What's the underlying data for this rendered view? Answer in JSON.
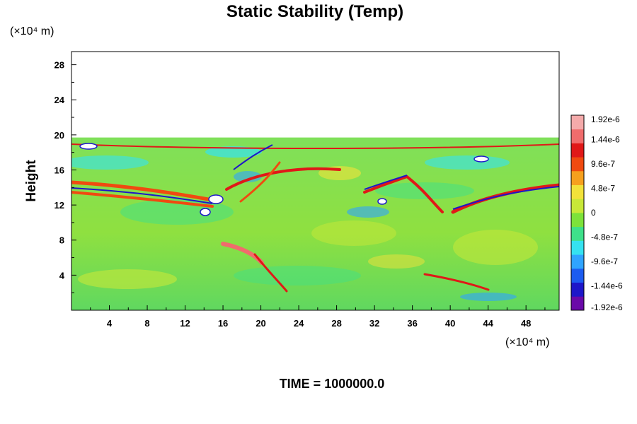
{
  "chart_data": {
    "type": "heatmap",
    "title": "Static Stability (Temp)",
    "ylabel": "Height",
    "x_unit": "(×10⁴ m)",
    "y_unit": "(×10⁴ m)",
    "xlim": [
      0,
      51.5
    ],
    "ylim": [
      0,
      29.5
    ],
    "x_ticks": [
      4,
      8,
      12,
      16,
      20,
      24,
      28,
      32,
      36,
      40,
      44,
      48
    ],
    "x_tick_labels": [
      "4",
      "8",
      "12",
      "16",
      "20",
      "24",
      "28",
      "32",
      "36",
      "40",
      "44",
      "48"
    ],
    "y_ticks": [
      4,
      8,
      12,
      16,
      20,
      24,
      28
    ],
    "y_tick_labels": [
      "4",
      "8",
      "12",
      "16",
      "20",
      "24",
      "28"
    ],
    "data_top_height": 19.7,
    "colorbar": {
      "range": [
        -1.92e-06,
        1.92e-06
      ],
      "tick_values": [
        1.92e-06,
        1.44e-06,
        9.6e-07,
        4.8e-07,
        0,
        -4.8e-07,
        -9.6e-07,
        -1.44e-06,
        -1.92e-06
      ],
      "tick_labels": [
        "1.92e-6",
        "1.44e-6",
        "9.6e-7",
        "4.8e-7",
        "0",
        "-4.8e-7",
        "-9.6e-7",
        "-1.44e-6",
        "-1.92e-6"
      ],
      "colors": [
        "#6a0aa8",
        "#1d17c9",
        "#1c5cf0",
        "#2fa4ff",
        "#35e2f0",
        "#3ee08a",
        "#7de23a",
        "#c8e838",
        "#f2e23a",
        "#f6a01e",
        "#f04a10",
        "#e01818",
        "#f06c6c",
        "#f4aaaa"
      ]
    },
    "grid": false,
    "footer": "TIME = 1000000.0"
  }
}
